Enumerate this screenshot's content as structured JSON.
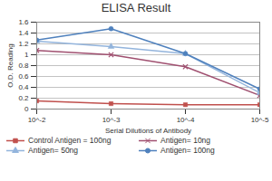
{
  "chart_data": {
    "type": "line",
    "title": "ELISA Result",
    "x_label": "Serial Dilutions of Antibody",
    "y_label": "O.D. Reading",
    "categories": [
      "10^-2",
      "10^-3",
      "10^-4",
      "10^-5"
    ],
    "series": [
      {
        "name": "Control Antigen = 100ng",
        "color": "#c0504d",
        "marker": "square",
        "values": [
          0.15,
          0.1,
          0.08,
          0.08
        ]
      },
      {
        "name": "Antigen= 10ng",
        "color": "#a05070",
        "marker": "x",
        "values": [
          1.08,
          1.0,
          0.78,
          0.25
        ]
      },
      {
        "name": "Antigen= 50ng",
        "color": "#93b4dc",
        "marker": "triangle",
        "values": [
          1.25,
          1.15,
          1.02,
          0.3
        ]
      },
      {
        "name": "Antigen= 100ng",
        "color": "#4f81bd",
        "marker": "circle",
        "values": [
          1.27,
          1.48,
          1.02,
          0.37
        ]
      }
    ],
    "ylim": [
      0,
      1.6
    ],
    "yticks": [
      0,
      0.2,
      0.4,
      0.6,
      0.8,
      1,
      1.2,
      1.4,
      1.6
    ],
    "grid": true,
    "legend": "bottom"
  }
}
